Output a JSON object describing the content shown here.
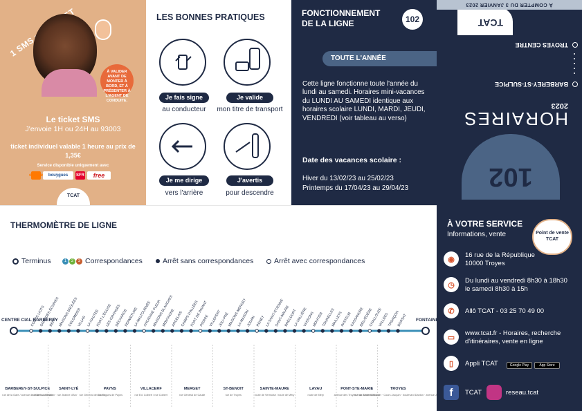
{
  "sms": {
    "diag": "1 SMS = 1 TICKET",
    "badge": "À VALIDER AVANT DE MONTER À BORD, ET À PRÉSENTER À L'AGENT DE CONDUITE.",
    "title": "Le ticket SMS",
    "send": "J'envoie 1H ou 24H au 93003",
    "valid": "ticket individuel valable 1 heure au prix de 1,35€",
    "service": "Service disponible uniquement avec",
    "operators": [
      "orange",
      "bouygues",
      "SFR",
      "free"
    ],
    "logo": "TCAT"
  },
  "bonnes": {
    "title": "LES BONNES PRATIQUES",
    "items": [
      {
        "pill": "Je fais signe",
        "sub": "au conducteur"
      },
      {
        "pill": "Je valide",
        "sub": "mon titre de transport"
      },
      {
        "pill": "Je me dirige",
        "sub": "vers l'arrière"
      },
      {
        "pill": "J'avertis",
        "sub": "pour descendre"
      }
    ]
  },
  "fonct": {
    "title": "FONCTIONNEMENT DE LA LIGNE",
    "number": "102",
    "tab": "TOUTE L'ANNÉE",
    "desc": "Cette ligne fonctionne toute l'année du lundi au samedi. Horaires mini-vacances du LUNDI AU SAMEDI identique aux horaires scolaire LUNDI, MARDI, JEUDI, VENDREDI (voir tableau au verso)",
    "vac_title": "Date des vacances scolaire :",
    "vac_hiver": "Hiver du 13/02/23 au 25/02/23",
    "vac_print": "Printemps du 17/04/23 au 29/04/23"
  },
  "cover": {
    "date": "À COMPTER DU 3 JANVIER 2023",
    "stop1": "TROYES CENTRE",
    "stop2": "BARBEREY-ST-SULPICE",
    "horaires": "HORAIRES",
    "year": "2023",
    "number": "102",
    "logo": "TCAT"
  },
  "thermo": {
    "title": "THERMOMÈTRE DE LIGNE",
    "legend": [
      "Terminus",
      "Correspondances",
      "Arrêt sans correspondances",
      "Arrêt avec correspondances"
    ],
    "legend_nums": [
      "1",
      "2",
      "3"
    ],
    "start": "CENTRE CIAL BARBEREY",
    "end": "FONTAINE",
    "stops": [
      "COURS LIOTS",
      "GRANDES ÉCURIES",
      "BERG",
      "MAISONS BRÛLÉES",
      "COLOMBIER",
      "VILLAS",
      "LA HAUTEE",
      "FORT-L'ÉGLISE",
      "LES GRANGES",
      "DÉCHARGE",
      "FERMETURE",
      "LA MALTOURNÉE",
      "ANCIENNE FLEUR",
      "MAISONS BLANCHES",
      "MONTAGNE",
      "ARCELAIS",
      "CAMPS D'ALLÉES",
      "FORT DE PAVANT",
      "PIERRE",
      "VILLEFERT",
      "JOLI-PRÉ",
      "MAISONS MERGEY",
      "LA MAISON",
      "JOUAN",
      "RENEY",
      "LA SAINT-ETIENNE",
      "SAINT-MAURE",
      "BRÉCOURT",
      "LA VALLIÈRE",
      "VASSONS",
      "MOUTIER",
      "TOURELLES",
      "MAILLETS",
      "PASTEUR",
      "CASSANDRE",
      "BELVÉDÈRE",
      "CHALLOUZE",
      "VALLÉES",
      "TRONÇON",
      "BORSAT"
    ],
    "communes": [
      {
        "name": "BARBEREY-ST-SULPICE",
        "sub": "rue de la Gare / avenue de Moret sur Seine"
      },
      {
        "name": "SAINT-LYÉ",
        "sub": "rue de la Libération · rue Jeanne d'Arc · rue Général de Gaulle"
      },
      {
        "name": "PAYNS",
        "sub": "rue Hugues de Payns"
      },
      {
        "name": "VILLACERF",
        "sub": "rue Ed. Colbert / rue Colbert"
      },
      {
        "name": "MERGEY",
        "sub": "rue Général de Gaulle"
      },
      {
        "name": "ST-BENOIT",
        "sub": "rue de Troyes"
      },
      {
        "name": "SAINTE-MAURE",
        "sub": "route de Vermoise / route de Méry"
      },
      {
        "name": "LAVAU",
        "sub": "route de Méry"
      },
      {
        "name": "PONT-STE-MARIE",
        "sub": "avenue des Troyes / rue André Malraux"
      },
      {
        "name": "TROYES",
        "sub": "rue du Général Moinier · Cours Jacquin · boulevard Danton · avenue Joffre"
      }
    ],
    "colors": {
      "navy": "#1f2a44",
      "teal": "#3a8fb7",
      "orange": "#c65d2e",
      "green": "#6fb13b",
      "grey": "#bfbfbf"
    }
  },
  "service": {
    "title": "À VOTRE SERVICE",
    "sub": "Informations, vente",
    "heart": "Point de vente TCAT",
    "addr1": "16 rue de la République",
    "addr2": "10000 Troyes",
    "hours1": "Du lundi au vendredi 8h30 à 18h30",
    "hours2": "le samedi 8h30 à 15h",
    "phone": "Allô TCAT - 03 25 70 49 00",
    "web1": "www.tcat.fr - Horaires, recherche",
    "web2": "d'itinéraires, vente en ligne",
    "app": "Appli TCAT",
    "gplay": "Google Play",
    "appstore": "App Store",
    "facebook": "TCAT",
    "instagram": "reseau.tcat"
  }
}
